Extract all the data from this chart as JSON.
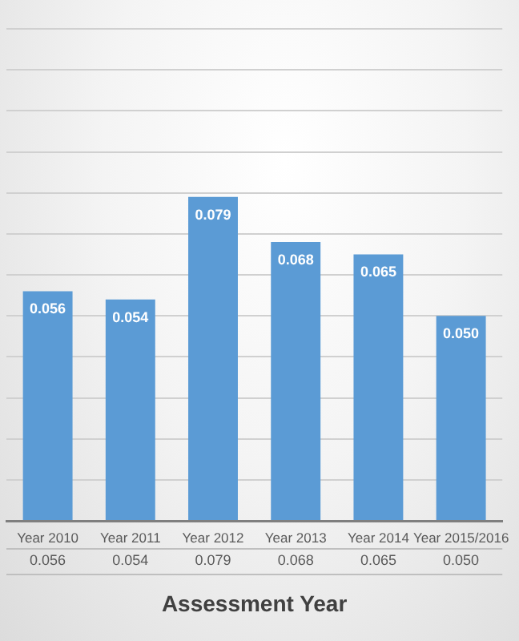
{
  "chart_data": {
    "type": "bar",
    "xlabel": "Assessment Year",
    "categories": [
      "Year 2010",
      "Year 2011",
      "Year 2012",
      "Year 2013",
      "Year 2014",
      "Year 2015/2016"
    ],
    "values": [
      0.056,
      0.054,
      0.079,
      0.068,
      0.065,
      0.05
    ],
    "value_labels": [
      "0.056",
      "0.054",
      "0.079",
      "0.068",
      "0.065",
      "0.050"
    ],
    "color": "#5b9bd5",
    "ylim": [
      0,
      0.12
    ],
    "yticks": [
      {
        "value": 0,
        "label": null
      },
      {
        "value": 0.01,
        "label": null
      },
      {
        "value": 0.02,
        "label": null
      },
      {
        "value": 0.03,
        "label": null
      },
      {
        "value": 0.04,
        "label": null
      },
      {
        "value": 0.05,
        "label": null
      },
      {
        "value": 0.06,
        "label": null
      },
      {
        "value": 0.07,
        "label": null
      },
      {
        "value": 0.08,
        "label": null
      },
      {
        "value": 0.09,
        "label": null
      },
      {
        "value": 0.1,
        "label": null
      },
      {
        "value": 0.11,
        "label": null
      },
      {
        "value": 0.12,
        "label": null
      }
    ],
    "grid": "y",
    "tick_labels": "x"
  }
}
